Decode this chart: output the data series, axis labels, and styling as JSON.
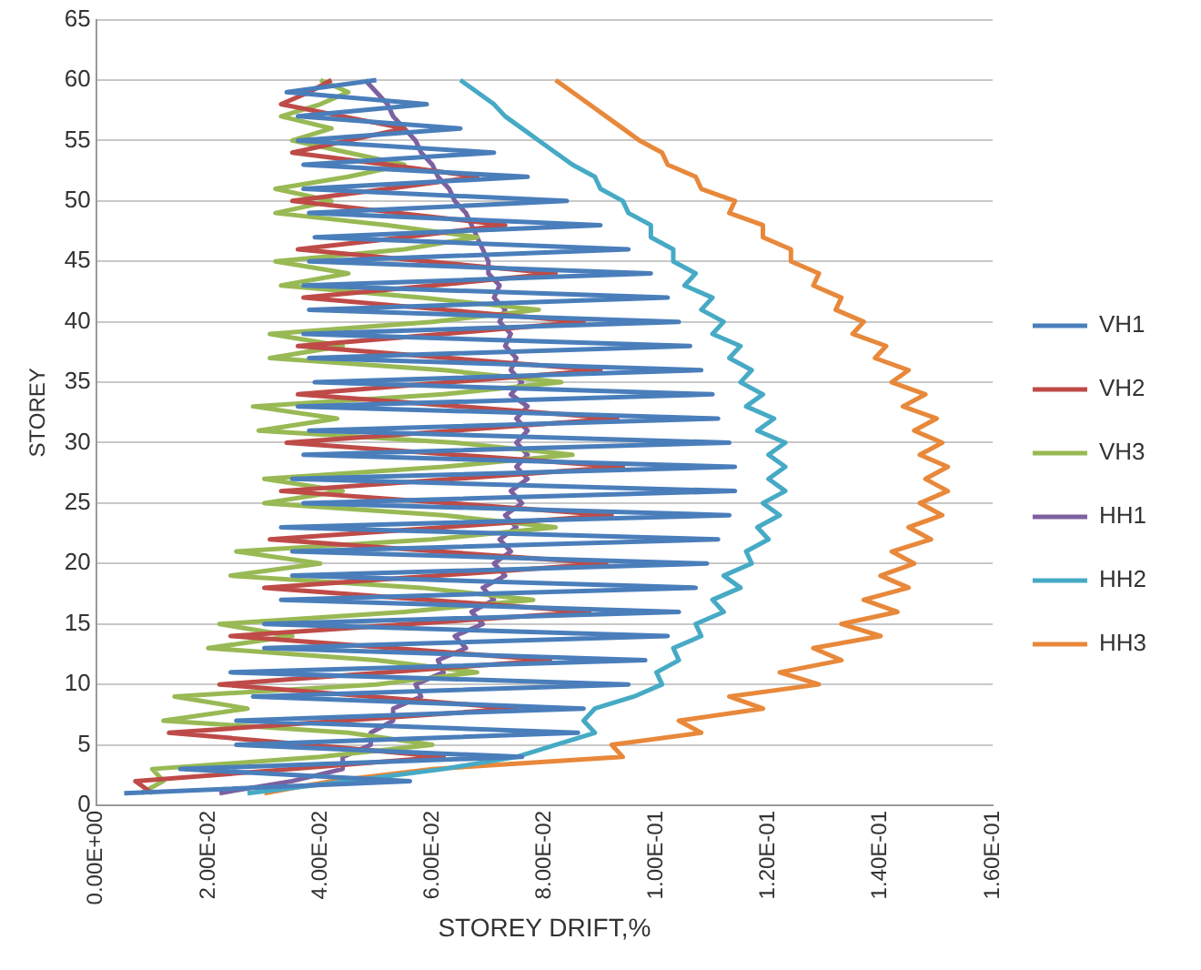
{
  "chart_data": {
    "type": "line",
    "xlabel": "STOREY DRIFT,%",
    "ylabel": "STOREY",
    "xlim": [
      0,
      0.16
    ],
    "xticks": [
      {
        "value": 0,
        "label": "0.00E+00"
      },
      {
        "value": 0.02,
        "label": "2.00E-02"
      },
      {
        "value": 0.04,
        "label": "4.00E-02"
      },
      {
        "value": 0.06,
        "label": "6.00E-02"
      },
      {
        "value": 0.08,
        "label": "8.00E-02"
      },
      {
        "value": 0.1,
        "label": "1.00E-01"
      },
      {
        "value": 0.12,
        "label": "1.20E-01"
      },
      {
        "value": 0.14,
        "label": "1.40E-01"
      },
      {
        "value": 0.16,
        "label": "1.60E-01"
      }
    ],
    "ylim": [
      0,
      65
    ],
    "yticks": [
      0,
      5,
      10,
      15,
      20,
      25,
      30,
      35,
      40,
      45,
      50,
      55,
      60,
      65
    ],
    "grid": "y",
    "legend": "right",
    "marker": "none",
    "line_style": "solid",
    "series": [
      {
        "name": "VH1",
        "color": "#4a7ebb",
        "x": [
          0.005,
          0.056,
          0.015,
          0.076,
          0.025,
          0.086,
          0.025,
          0.087,
          0.028,
          0.095,
          0.024,
          0.098,
          0.03,
          0.102,
          0.03,
          0.104,
          0.033,
          0.107,
          0.035,
          0.109,
          0.035,
          0.111,
          0.033,
          0.113,
          0.037,
          0.114,
          0.035,
          0.114,
          0.037,
          0.113,
          0.038,
          0.111,
          0.036,
          0.11,
          0.039,
          0.108,
          0.038,
          0.106,
          0.037,
          0.104,
          0.038,
          0.102,
          0.037,
          0.099,
          0.038,
          0.095,
          0.039,
          0.09,
          0.038,
          0.084,
          0.037,
          0.077,
          0.037,
          0.071,
          0.036,
          0.065,
          0.036,
          0.059,
          0.034,
          0.05
        ],
        "values": [
          1,
          2,
          3,
          4,
          5,
          6,
          7,
          8,
          9,
          10,
          11,
          12,
          13,
          14,
          15,
          16,
          17,
          18,
          19,
          20,
          21,
          22,
          23,
          24,
          25,
          26,
          27,
          28,
          29,
          30,
          31,
          32,
          33,
          34,
          35,
          36,
          37,
          38,
          39,
          40,
          41,
          42,
          43,
          44,
          45,
          46,
          47,
          48,
          49,
          50,
          51,
          52,
          53,
          54,
          55,
          56,
          57,
          58,
          59,
          60
        ]
      },
      {
        "name": "VH2",
        "color": "#be4b48",
        "x": [
          0.01,
          0.007,
          0.035,
          0.062,
          0.038,
          0.013,
          0.044,
          0.075,
          0.049,
          0.022,
          0.052,
          0.081,
          0.053,
          0.024,
          0.056,
          0.088,
          0.059,
          0.03,
          0.061,
          0.091,
          0.061,
          0.031,
          0.062,
          0.092,
          0.063,
          0.033,
          0.064,
          0.094,
          0.064,
          0.034,
          0.064,
          0.093,
          0.065,
          0.036,
          0.063,
          0.09,
          0.063,
          0.036,
          0.062,
          0.087,
          0.062,
          0.037,
          0.06,
          0.082,
          0.059,
          0.036,
          0.055,
          0.073,
          0.054,
          0.035,
          0.052,
          0.068,
          0.052,
          0.035,
          0.045,
          0.055,
          0.044,
          0.033,
          0.038,
          0.042
        ],
        "values": [
          1,
          2,
          3,
          4,
          5,
          6,
          7,
          8,
          9,
          10,
          11,
          12,
          13,
          14,
          15,
          16,
          17,
          18,
          19,
          20,
          21,
          22,
          23,
          24,
          25,
          26,
          27,
          28,
          29,
          30,
          31,
          32,
          33,
          34,
          35,
          36,
          37,
          38,
          39,
          40,
          41,
          42,
          43,
          44,
          45,
          46,
          47,
          48,
          49,
          50,
          51,
          52,
          53,
          54,
          55,
          56,
          57,
          58,
          59,
          60
        ]
      },
      {
        "name": "VH3",
        "color": "#98b954",
        "x": [
          0.008,
          0.012,
          0.01,
          0.04,
          0.06,
          0.045,
          0.012,
          0.027,
          0.014,
          0.05,
          0.068,
          0.05,
          0.02,
          0.035,
          0.022,
          0.055,
          0.078,
          0.058,
          0.024,
          0.04,
          0.025,
          0.06,
          0.082,
          0.062,
          0.03,
          0.044,
          0.03,
          0.062,
          0.085,
          0.064,
          0.029,
          0.043,
          0.028,
          0.062,
          0.083,
          0.062,
          0.031,
          0.044,
          0.031,
          0.06,
          0.079,
          0.058,
          0.033,
          0.045,
          0.032,
          0.055,
          0.068,
          0.052,
          0.032,
          0.042,
          0.032,
          0.045,
          0.055,
          0.045,
          0.035,
          0.042,
          0.033,
          0.04,
          0.045,
          0.04
        ],
        "values": [
          1,
          2,
          3,
          4,
          5,
          6,
          7,
          8,
          9,
          10,
          11,
          12,
          13,
          14,
          15,
          16,
          17,
          18,
          19,
          20,
          21,
          22,
          23,
          24,
          25,
          26,
          27,
          28,
          29,
          30,
          31,
          32,
          33,
          34,
          35,
          36,
          37,
          38,
          39,
          40,
          41,
          42,
          43,
          44,
          45,
          46,
          47,
          48,
          49,
          50,
          51,
          52,
          53,
          54,
          55,
          56,
          57,
          58,
          59,
          60
        ]
      },
      {
        "name": "HH1",
        "color": "#7d60a0",
        "x": [
          0.022,
          0.035,
          0.044,
          0.044,
          0.049,
          0.049,
          0.053,
          0.053,
          0.058,
          0.057,
          0.062,
          0.061,
          0.066,
          0.064,
          0.069,
          0.067,
          0.071,
          0.069,
          0.073,
          0.071,
          0.074,
          0.072,
          0.075,
          0.073,
          0.076,
          0.074,
          0.077,
          0.075,
          0.077,
          0.075,
          0.077,
          0.075,
          0.077,
          0.074,
          0.076,
          0.074,
          0.075,
          0.073,
          0.074,
          0.072,
          0.073,
          0.071,
          0.072,
          0.07,
          0.07,
          0.069,
          0.068,
          0.067,
          0.066,
          0.064,
          0.063,
          0.061,
          0.06,
          0.058,
          0.057,
          0.055,
          0.053,
          0.052,
          0.05,
          0.048
        ],
        "values": [
          1,
          2,
          3,
          4,
          5,
          6,
          7,
          8,
          9,
          10,
          11,
          12,
          13,
          14,
          15,
          16,
          17,
          18,
          19,
          20,
          21,
          22,
          23,
          24,
          25,
          26,
          27,
          28,
          29,
          30,
          31,
          32,
          33,
          34,
          35,
          36,
          37,
          38,
          39,
          40,
          41,
          42,
          43,
          44,
          45,
          46,
          47,
          48,
          49,
          50,
          51,
          52,
          53,
          54,
          55,
          56,
          57,
          58,
          59,
          60
        ]
      },
      {
        "name": "HH2",
        "color": "#46aac5",
        "x": [
          0.027,
          0.045,
          0.062,
          0.075,
          0.082,
          0.089,
          0.087,
          0.089,
          0.096,
          0.101,
          0.1,
          0.104,
          0.103,
          0.108,
          0.107,
          0.112,
          0.11,
          0.115,
          0.112,
          0.117,
          0.116,
          0.12,
          0.118,
          0.122,
          0.119,
          0.123,
          0.12,
          0.123,
          0.12,
          0.123,
          0.118,
          0.121,
          0.116,
          0.119,
          0.115,
          0.117,
          0.113,
          0.115,
          0.11,
          0.112,
          0.108,
          0.11,
          0.105,
          0.107,
          0.103,
          0.103,
          0.099,
          0.099,
          0.095,
          0.094,
          0.09,
          0.089,
          0.085,
          0.082,
          0.079,
          0.076,
          0.073,
          0.071,
          0.068,
          0.065
        ],
        "values": [
          1,
          2,
          3,
          4,
          5,
          6,
          7,
          8,
          9,
          10,
          11,
          12,
          13,
          14,
          15,
          16,
          17,
          18,
          19,
          20,
          21,
          22,
          23,
          24,
          25,
          26,
          27,
          28,
          29,
          30,
          31,
          32,
          33,
          34,
          35,
          36,
          37,
          38,
          39,
          40,
          41,
          42,
          43,
          44,
          45,
          46,
          47,
          48,
          49,
          50,
          51,
          52,
          53,
          54,
          55,
          56,
          57,
          58,
          59,
          60
        ]
      },
      {
        "name": "HH3",
        "color": "#e8883a",
        "x": [
          0.03,
          0.042,
          0.06,
          0.094,
          0.092,
          0.108,
          0.104,
          0.119,
          0.113,
          0.129,
          0.122,
          0.133,
          0.128,
          0.14,
          0.133,
          0.143,
          0.137,
          0.145,
          0.14,
          0.146,
          0.142,
          0.149,
          0.145,
          0.151,
          0.147,
          0.152,
          0.148,
          0.152,
          0.147,
          0.151,
          0.146,
          0.15,
          0.144,
          0.148,
          0.142,
          0.145,
          0.139,
          0.141,
          0.135,
          0.137,
          0.132,
          0.133,
          0.128,
          0.129,
          0.124,
          0.124,
          0.119,
          0.119,
          0.113,
          0.114,
          0.108,
          0.107,
          0.102,
          0.101,
          0.097,
          0.094,
          0.091,
          0.088,
          0.085,
          0.082
        ],
        "values": [
          1,
          2,
          3,
          4,
          5,
          6,
          7,
          8,
          9,
          10,
          11,
          12,
          13,
          14,
          15,
          16,
          17,
          18,
          19,
          20,
          21,
          22,
          23,
          24,
          25,
          26,
          27,
          28,
          29,
          30,
          31,
          32,
          33,
          34,
          35,
          36,
          37,
          38,
          39,
          40,
          41,
          42,
          43,
          44,
          45,
          46,
          47,
          48,
          49,
          50,
          51,
          52,
          53,
          54,
          55,
          56,
          57,
          58,
          59,
          60
        ]
      }
    ]
  }
}
